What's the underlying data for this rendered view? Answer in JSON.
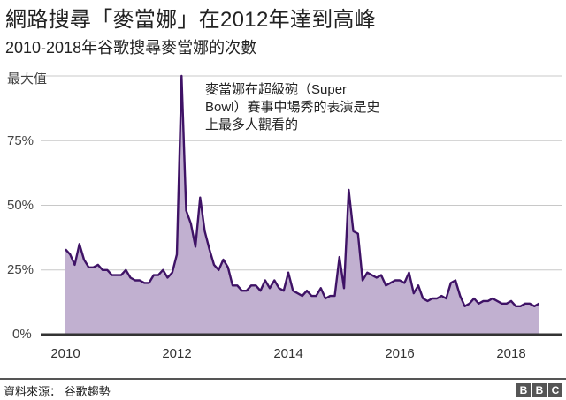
{
  "header": {
    "title": "網路搜尋「麥當娜」在2012年達到高峰",
    "subtitle": "2010-2018年谷歌搜尋麥當娜的次數"
  },
  "annotation": {
    "text": "麥當娜在超級碗（Super Bowl）賽事中場秀的表演是史上最多人觀看的"
  },
  "footer": {
    "source": "資料來源： 谷歌趨勢",
    "logo": [
      "B",
      "B",
      "C"
    ]
  },
  "colors": {
    "line": "#3f1366",
    "fill": "#c1b0d0",
    "grid": "#c8c8c8",
    "axis": "#333333"
  },
  "chart_data": {
    "type": "area",
    "title": "網路搜尋「麥當娜」在2012年達到高峰",
    "subtitle": "2010-2018年谷歌搜尋麥當娜的次數",
    "xlabel": "",
    "ylabel": "",
    "x_ticks": [
      "2010",
      "2012",
      "2014",
      "2016",
      "2018"
    ],
    "y_ticks": [
      "0%",
      "25%",
      "50%",
      "75%",
      "最大值"
    ],
    "ylim": [
      0,
      100
    ],
    "xlim": [
      2010,
      2018.6
    ],
    "grid": true,
    "legend": "none",
    "source": "谷歌趨勢",
    "x_start": 2010.0,
    "x_step_months": 1,
    "values": [
      33,
      31,
      27,
      35,
      29,
      26,
      26,
      27,
      25,
      25,
      23,
      23,
      23,
      25,
      22,
      21,
      21,
      20,
      20,
      23,
      23,
      25,
      22,
      24,
      31,
      100,
      48,
      43,
      34,
      53,
      40,
      33,
      27,
      25,
      29,
      26,
      19,
      19,
      17,
      17,
      19,
      19,
      17,
      21,
      18,
      21,
      18,
      17,
      24,
      17,
      16,
      15,
      17,
      15,
      15,
      18,
      14,
      15,
      15,
      30,
      18,
      56,
      40,
      39,
      21,
      24,
      23,
      22,
      23,
      19,
      20,
      21,
      21,
      20,
      24,
      16,
      19,
      14,
      13,
      14,
      14,
      15,
      14,
      20,
      21,
      15,
      11,
      12,
      14,
      12,
      13,
      13,
      14,
      13,
      12,
      12,
      13,
      11,
      11,
      12,
      12,
      11,
      12
    ]
  }
}
